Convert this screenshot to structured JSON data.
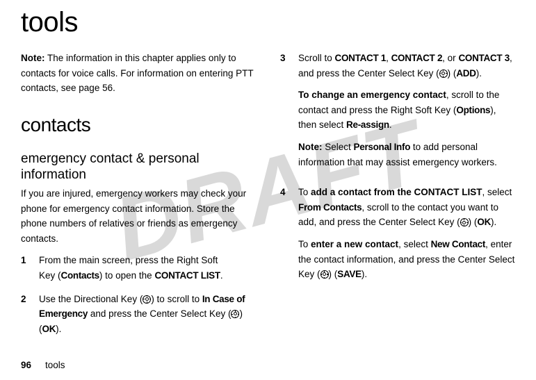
{
  "watermark": "DRAFT",
  "chapter_title": "tools",
  "left": {
    "note_label": "Note:",
    "note_text": " The information in this chapter applies only to contacts for voice calls. For information on entering PTT contacts, see page 56.",
    "section_title": "contacts",
    "sub_title": "emergency contact & personal information",
    "intro": "If you are injured, emergency workers may check your phone for emergency contact information. Store the phone numbers of relatives or friends as emergency contacts.",
    "step1_num": "1",
    "step1_a": "From the main screen, press the Right Soft Key (",
    "step1_b": "Contacts",
    "step1_c": ") to open the ",
    "step1_d": "CONTACT LIST",
    "step1_e": ".",
    "step2_num": "2",
    "step2_a": "Use the Directional Key (",
    "step2_b": ") to scroll to ",
    "step2_c": "In Case of Emergency",
    "step2_d": " and press the Center Select Key (",
    "step2_e": ") (",
    "step2_f": "OK",
    "step2_g": ")."
  },
  "right": {
    "step3_num": "3",
    "step3_a": "Scroll to ",
    "step3_b": "CONTACT 1",
    "step3_c": ", ",
    "step3_d": "CONTACT 2",
    "step3_e": ", or ",
    "step3_f": "CONTACT 3",
    "step3_g": ", and press the Center Select Key (",
    "step3_h": ") (",
    "step3_i": "ADD",
    "step3_j": ").",
    "p2_a": "To change an emergency contact",
    "p2_b": ", scroll to the contact and press the Right Soft Key (",
    "p2_c": "Options",
    "p2_d": "), then select ",
    "p2_e": "Re-assign",
    "p2_f": ".",
    "p3_a": "Note:",
    "p3_b": " Select ",
    "p3_c": "Personal Info",
    "p3_d": " to add personal information that may assist emergency workers.",
    "step4_num": "4",
    "step4_a": "To ",
    "step4_b": "add a contact from the CONTACT LIST",
    "step4_c": ", select ",
    "step4_d": "From Contacts",
    "step4_e": ", scroll to the contact you want to add, and press the Center Select Key (",
    "step4_f": ") (",
    "step4_g": "OK",
    "step4_h": ").",
    "p5_a": "To ",
    "p5_b": "enter a new contact",
    "p5_c": ", select ",
    "p5_d": "New Contact",
    "p5_e": ", enter the contact information, and press the Center Select Key (",
    "p5_f": ") (",
    "p5_g": "SAVE",
    "p5_h": ")."
  },
  "footer": {
    "page": "96",
    "label": "tools"
  }
}
